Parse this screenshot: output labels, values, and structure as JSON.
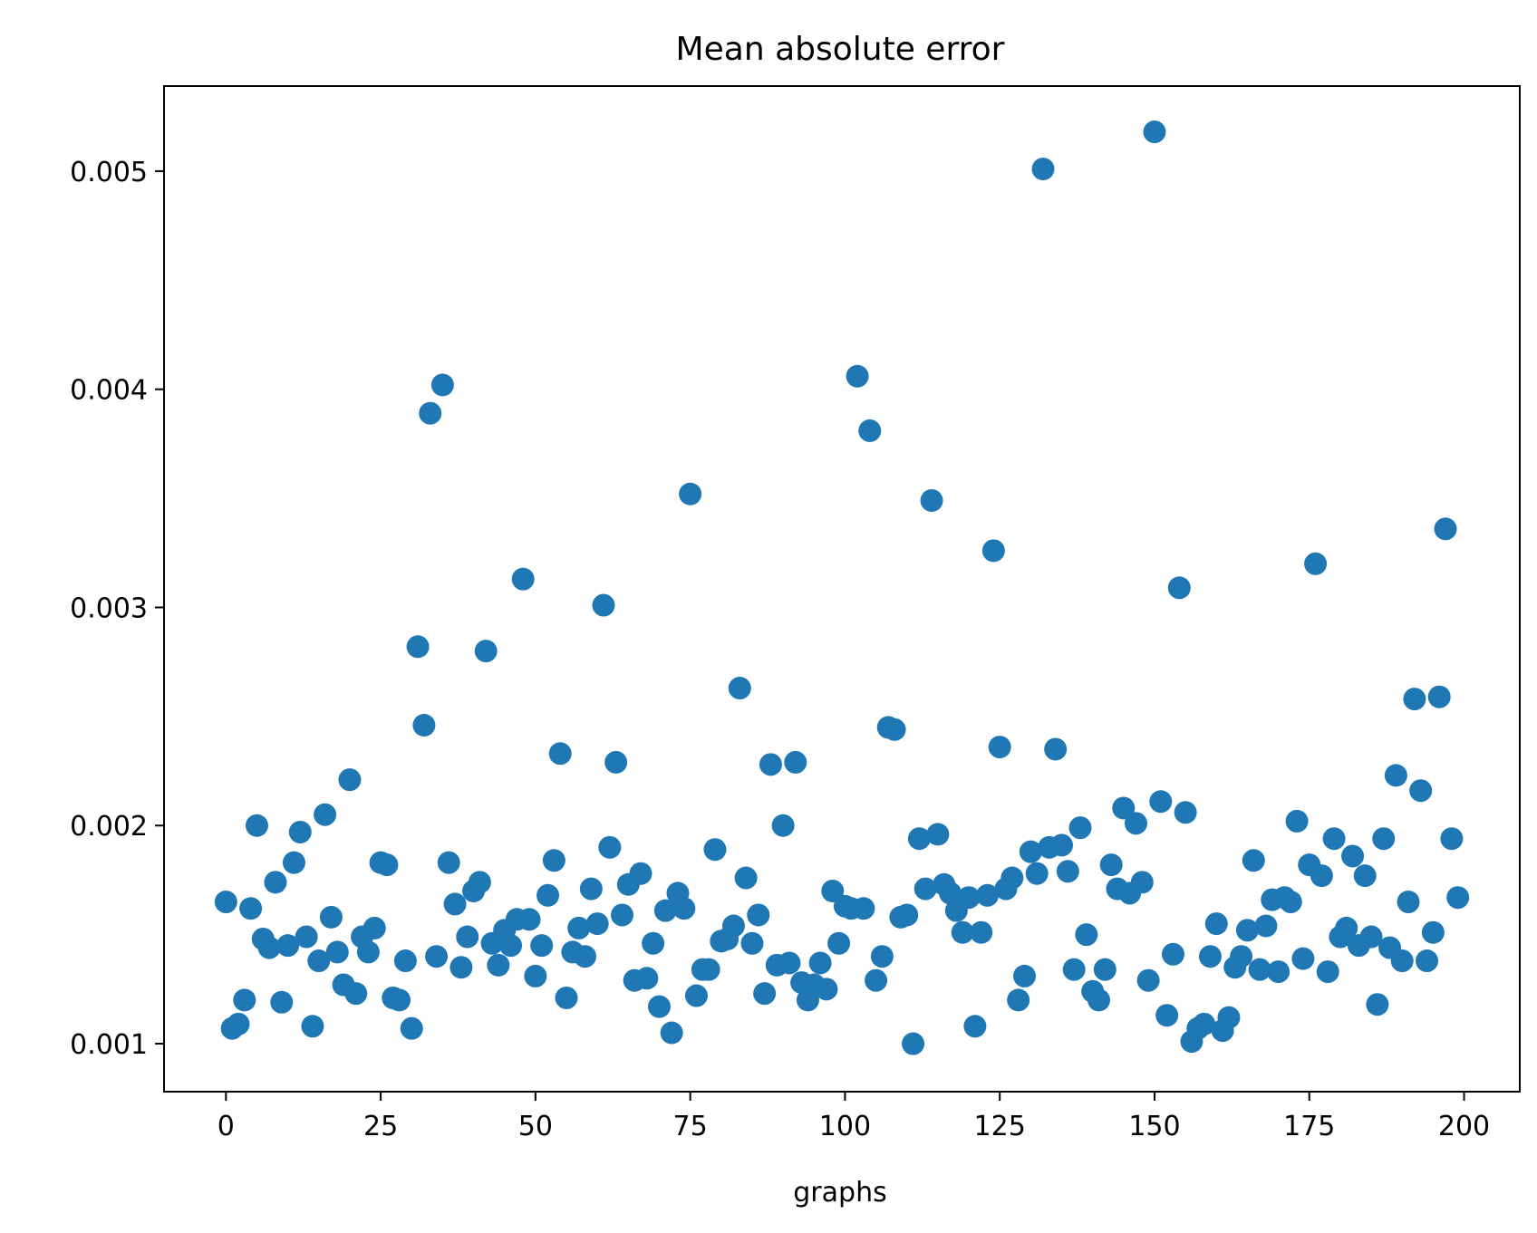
{
  "chart_data": {
    "type": "scatter",
    "title": "Mean absolute error",
    "xlabel": "graphs",
    "ylabel": "",
    "xlim": [
      -10,
      209
    ],
    "ylim": [
      0.00078,
      0.00539
    ],
    "xticks": [
      0,
      25,
      50,
      75,
      100,
      125,
      150,
      175,
      200
    ],
    "xtick_labels": [
      "0",
      "25",
      "50",
      "75",
      "100",
      "125",
      "150",
      "175",
      "200"
    ],
    "yticks": [
      0.001,
      0.002,
      0.003,
      0.004,
      0.005
    ],
    "ytick_labels": [
      "0.001",
      "0.002",
      "0.003",
      "0.004",
      "0.005"
    ],
    "grid": false,
    "legend": "none",
    "color": "#1f77b4",
    "series": [
      {
        "x": [
          0,
          1,
          2,
          3,
          4,
          5,
          6,
          7,
          8,
          9,
          10,
          11,
          12,
          13,
          14,
          15,
          16,
          17,
          18,
          19,
          20,
          21,
          22,
          23,
          24,
          25,
          26,
          27,
          28,
          29,
          30,
          31,
          32,
          33,
          34,
          35,
          36,
          37,
          38,
          39,
          40,
          41,
          42,
          43,
          44,
          45,
          46,
          47,
          48,
          49,
          50,
          51,
          52,
          53,
          54,
          55,
          56,
          57,
          58,
          59,
          60,
          61,
          62,
          63,
          64,
          65,
          66,
          67,
          68,
          69,
          70,
          71,
          72,
          73,
          74,
          75,
          76,
          77,
          78,
          79,
          80,
          81,
          82,
          83,
          84,
          85,
          86,
          87,
          88,
          89,
          90,
          91,
          92,
          93,
          94,
          95,
          96,
          97,
          98,
          99,
          100,
          101,
          102,
          103,
          104,
          105,
          106,
          107,
          108,
          109,
          110,
          111,
          112,
          113,
          114,
          115,
          116,
          117,
          118,
          119,
          120,
          121,
          122,
          123,
          124,
          125,
          126,
          127,
          128,
          129,
          130,
          131,
          132,
          133,
          134,
          135,
          136,
          137,
          138,
          139,
          140,
          141,
          142,
          143,
          144,
          145,
          146,
          147,
          148,
          149,
          150,
          151,
          152,
          153,
          154,
          155,
          156,
          157,
          158,
          159,
          160,
          161,
          162,
          163,
          164,
          165,
          166,
          167,
          168,
          169,
          170,
          171,
          172,
          173,
          174,
          175,
          176,
          177,
          178,
          179,
          180,
          181,
          182,
          183,
          184,
          185,
          186,
          187,
          188,
          189,
          190,
          191,
          192,
          193,
          194,
          195,
          196,
          197,
          198,
          199
        ],
        "y": [
          0.00165,
          0.00107,
          0.00109,
          0.0012,
          0.00162,
          0.002,
          0.00148,
          0.00144,
          0.00174,
          0.00119,
          0.00145,
          0.00183,
          0.00197,
          0.00149,
          0.00108,
          0.00138,
          0.00205,
          0.00158,
          0.00142,
          0.00127,
          0.00221,
          0.00123,
          0.00149,
          0.00142,
          0.00153,
          0.00183,
          0.00182,
          0.00121,
          0.0012,
          0.00138,
          0.00107,
          0.00282,
          0.00246,
          0.00389,
          0.0014,
          0.00402,
          0.00183,
          0.00164,
          0.00135,
          0.00149,
          0.0017,
          0.00174,
          0.0028,
          0.00146,
          0.00136,
          0.00152,
          0.00145,
          0.00157,
          0.00313,
          0.00157,
          0.00131,
          0.00145,
          0.00168,
          0.00184,
          0.00233,
          0.00121,
          0.00142,
          0.00153,
          0.0014,
          0.00171,
          0.00155,
          0.00301,
          0.0019,
          0.00229,
          0.00159,
          0.00173,
          0.00129,
          0.00178,
          0.0013,
          0.00146,
          0.00117,
          0.00161,
          0.00105,
          0.00169,
          0.00162,
          0.00352,
          0.00122,
          0.00134,
          0.00134,
          0.00189,
          0.00147,
          0.00148,
          0.00154,
          0.00263,
          0.00176,
          0.00146,
          0.00159,
          0.00123,
          0.00228,
          0.00136,
          0.002,
          0.00137,
          0.00229,
          0.00128,
          0.0012,
          0.00127,
          0.00137,
          0.00125,
          0.0017,
          0.00146,
          0.00163,
          0.00162,
          0.00406,
          0.00162,
          0.00381,
          0.00129,
          0.0014,
          0.00245,
          0.00244,
          0.00158,
          0.00159,
          0.001,
          0.00194,
          0.00171,
          0.00349,
          0.00196,
          0.00173,
          0.00169,
          0.00161,
          0.00151,
          0.00167,
          0.00108,
          0.00151,
          0.00168,
          0.00326,
          0.00236,
          0.00171,
          0.00176,
          0.0012,
          0.00131,
          0.00188,
          0.00178,
          0.00501,
          0.0019,
          0.00235,
          0.00191,
          0.00179,
          0.00134,
          0.00199,
          0.0015,
          0.00124,
          0.0012,
          0.00134,
          0.00182,
          0.00171,
          0.00208,
          0.00169,
          0.00201,
          0.00174,
          0.00129,
          0.00518,
          0.00211,
          0.00113,
          0.00141,
          0.00309,
          0.00206,
          0.00101,
          0.00107,
          0.00109,
          0.0014,
          0.00155,
          0.00106,
          0.00112,
          0.00135,
          0.0014,
          0.00152,
          0.00184,
          0.00134,
          0.00154,
          0.00166,
          0.00133,
          0.00167,
          0.00165,
          0.00202,
          0.00139,
          0.00182,
          0.0032,
          0.00177,
          0.00133,
          0.00194,
          0.00149,
          0.00153,
          0.00186,
          0.00145,
          0.00177,
          0.00149,
          0.00118,
          0.00194,
          0.00144,
          0.00223,
          0.00138,
          0.00165,
          0.00258,
          0.00216,
          0.00138,
          0.00151,
          0.00259,
          0.00336,
          0.00194,
          0.00167
        ]
      }
    ]
  }
}
